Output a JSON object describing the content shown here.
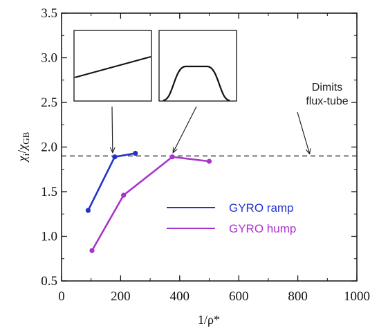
{
  "chart_data": {
    "type": "line",
    "xlabel": "1/ρ*",
    "ylabel": "χi/χGB",
    "xlim": [
      0,
      1000
    ],
    "ylim": [
      0.5,
      3.5
    ],
    "xticks": [
      0,
      200,
      400,
      600,
      800,
      1000
    ],
    "xtick_labels": [
      "0",
      "200",
      "400",
      "600",
      "800",
      "1000"
    ],
    "yticks": [
      0.5,
      1.0,
      1.5,
      2.0,
      2.5,
      3.0,
      3.5
    ],
    "ytick_labels": [
      "0.5",
      "1.0",
      "1.5",
      "2.0",
      "2.5",
      "3.0",
      "3.5"
    ],
    "grid": false,
    "legend_position": "center-right",
    "series": [
      {
        "name": "GYRO ramp",
        "color": "#2233cc",
        "x": [
          90,
          180,
          250
        ],
        "y": [
          1.29,
          1.89,
          1.93
        ]
      },
      {
        "name": "GYRO hump",
        "color": "#aa33cc",
        "x": [
          103,
          210,
          375,
          500
        ],
        "y": [
          0.84,
          1.46,
          1.89,
          1.84
        ]
      }
    ],
    "reference_line": {
      "y": 1.9,
      "style": "dashed",
      "label_line1": "Dimits",
      "label_line2": "flux-tube",
      "arrow_to_x": 840
    },
    "insets": [
      {
        "shape": "ramp",
        "arrow_to": [
          180,
          1.89
        ]
      },
      {
        "shape": "hump",
        "arrow_to": [
          375,
          1.89
        ]
      }
    ]
  }
}
